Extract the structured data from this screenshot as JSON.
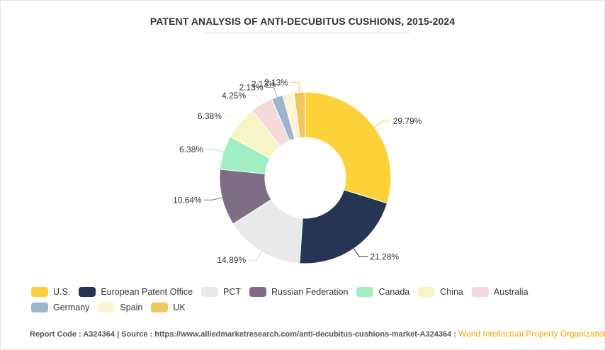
{
  "chart_data": {
    "type": "pie",
    "donut": true,
    "title": "PATENT ANALYSIS OF ANTI-DECUBITUS CUSHIONS, 2015-2024",
    "slices": [
      {
        "name": "U.S.",
        "value": 29.79,
        "label": "29.79%",
        "color": "#fdd239"
      },
      {
        "name": "European Patent Office",
        "value": 21.28,
        "label": "21.28%",
        "color": "#253553"
      },
      {
        "name": "PCT",
        "value": 14.89,
        "label": "14.89%",
        "color": "#e9e9e9"
      },
      {
        "name": "Russian Federation",
        "value": 10.64,
        "label": "10.64%",
        "color": "#7e6d84"
      },
      {
        "name": "Canada",
        "value": 6.38,
        "label": "6.38%",
        "color": "#a2eec3"
      },
      {
        "name": "China",
        "value": 6.38,
        "label": "6.38%",
        "color": "#f7f5c8"
      },
      {
        "name": "Australia",
        "value": 4.25,
        "label": "4.25%",
        "color": "#f6d9dd"
      },
      {
        "name": "Germany",
        "value": 2.13,
        "label": "2.13%",
        "color": "#9bb6cc"
      },
      {
        "name": "Spain",
        "value": 2.13,
        "label": "2.13%",
        "color": "#fdf4d8"
      },
      {
        "name": "UK",
        "value": 2.13,
        "label": "2.13%",
        "color": "#efc75e"
      }
    ],
    "legend_position": "bottom"
  },
  "footer": {
    "report_code_label": "Report Code : A324364",
    "separator": "|",
    "source_label": "Source : https://www.alliedmarketresearch.com/anti-decubitus-cushions-market-A324364 :",
    "organization": "World Intellectual Property Organization"
  }
}
